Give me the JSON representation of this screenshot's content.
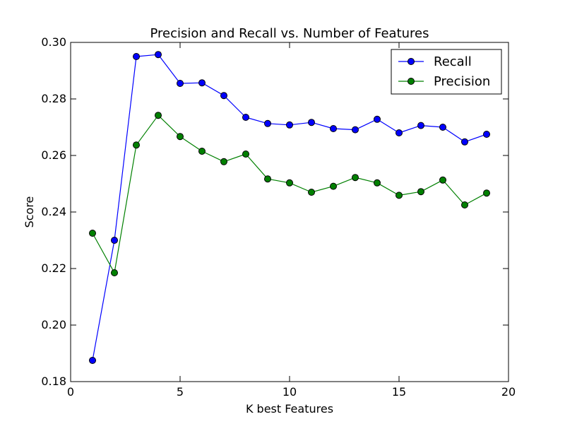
{
  "chart_data": {
    "type": "line",
    "title": "Precision and Recall vs. Number of Features",
    "xlabel": "K best Features",
    "ylabel": "Score",
    "xlim": [
      0,
      20
    ],
    "ylim": [
      0.18,
      0.3
    ],
    "x_ticks": [
      0,
      5,
      10,
      15,
      20
    ],
    "y_ticks": [
      0.18,
      0.2,
      0.22,
      0.24,
      0.26,
      0.28,
      0.3
    ],
    "x_tick_labels": [
      "0",
      "5",
      "10",
      "15",
      "20"
    ],
    "y_tick_labels": [
      "0.18",
      "0.20",
      "0.22",
      "0.24",
      "0.26",
      "0.28",
      "0.30"
    ],
    "grid": false,
    "legend_position": "top-right",
    "x": [
      1,
      2,
      3,
      4,
      5,
      6,
      7,
      8,
      9,
      10,
      11,
      12,
      13,
      14,
      15,
      16,
      17,
      18,
      19
    ],
    "series": [
      {
        "name": "Recall",
        "color": "#0000ff",
        "values": [
          0.1875,
          0.23,
          0.295,
          0.2957,
          0.2855,
          0.2857,
          0.2812,
          0.2735,
          0.2713,
          0.2708,
          0.2717,
          0.2695,
          0.2691,
          0.2728,
          0.268,
          0.2706,
          0.27,
          0.2648,
          0.2675
        ]
      },
      {
        "name": "Precision",
        "color": "#008000",
        "values": [
          0.2325,
          0.2185,
          0.2637,
          0.2742,
          0.2667,
          0.2615,
          0.2578,
          0.2605,
          0.2517,
          0.2503,
          0.247,
          0.2491,
          0.2522,
          0.2503,
          0.2459,
          0.2472,
          0.2513,
          0.2425,
          0.2467
        ]
      }
    ]
  }
}
